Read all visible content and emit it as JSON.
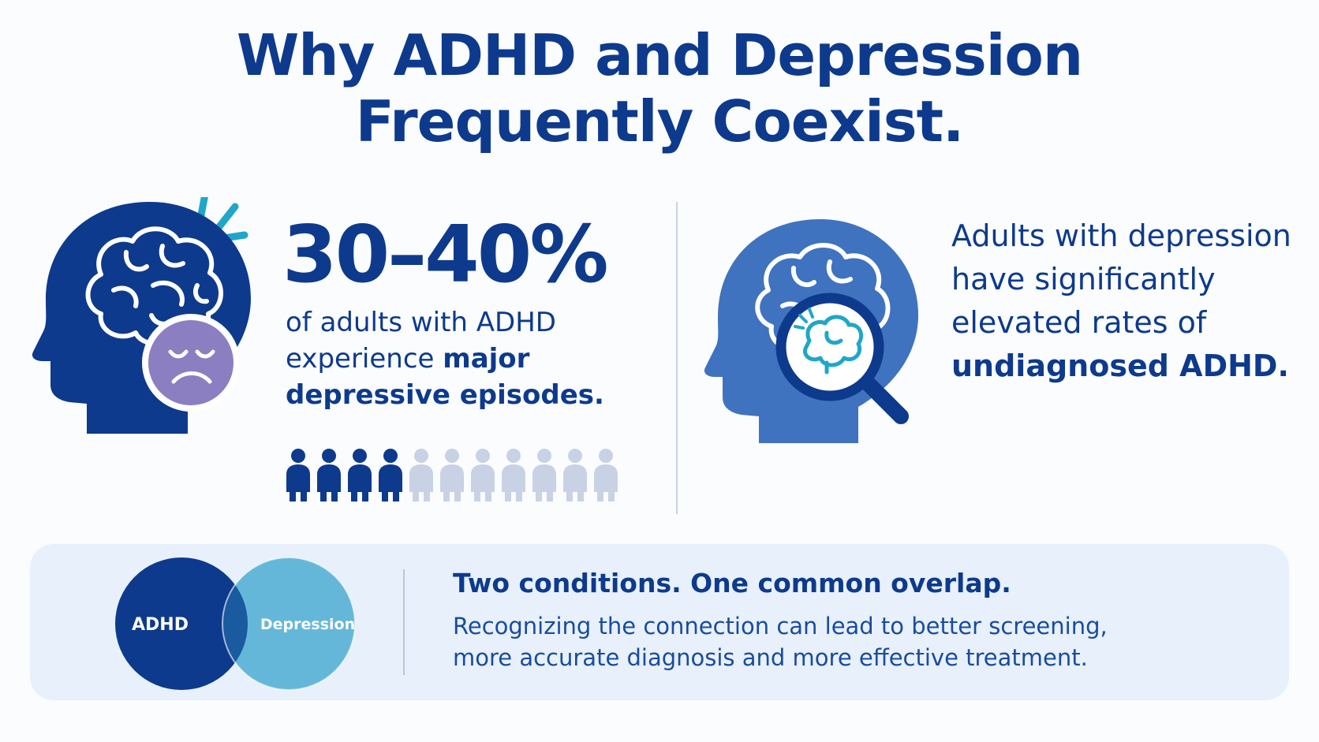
{
  "title": {
    "line1": "Why ADHD and Depression",
    "line2": "Frequently Coexist."
  },
  "left_panel": {
    "stat": "30–40%",
    "text_regular_1": "of adults with ADHD experience ",
    "text_bold_1": "major depressive episodes.",
    "icons": {
      "head": "head-with-brain-icon",
      "face": "sad-face-icon",
      "person": "person-icon",
      "alert": "alert-rays-icon"
    },
    "people_total": 11,
    "people_highlighted": 4
  },
  "right_panel": {
    "text_regular_1": "Adults with depression have significantly elevated rates of ",
    "text_bold_1": "undiagnosed ADHD.",
    "icons": {
      "head": "head-with-brain-icon",
      "magnifier": "magnifying-glass-icon"
    }
  },
  "bottom": {
    "venn_left": "ADHD",
    "venn_right": "Depression",
    "headline": "Two conditions. One common overlap.",
    "body_line1": "Recognizing the connection can lead to better screening,",
    "body_line2": "more accurate diagnosis and more effective treatment."
  },
  "colors": {
    "navy": "#0d3a8c",
    "medium_blue": "#3f73bf",
    "light_blue": "#5ab2d6",
    "teal": "#1fa6c9",
    "purple": "#8b7fc2",
    "muted_person": "#c9d2e4",
    "band_bg": "#e7f0fb"
  }
}
